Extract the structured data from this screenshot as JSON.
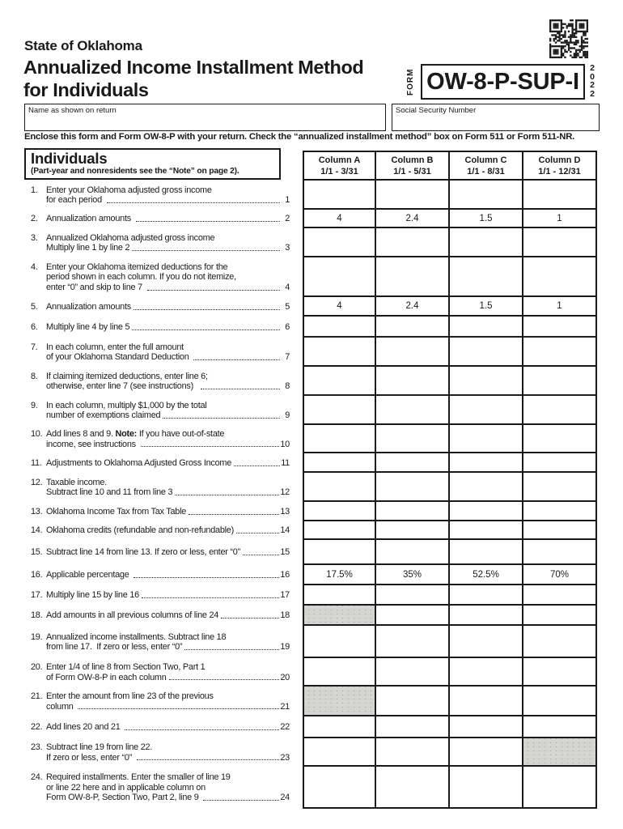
{
  "colors": {
    "ink": "#1a1a1a",
    "shaded_cell": "#d5d6d4"
  },
  "header": {
    "state": "State of Oklahoma",
    "title_line1": "Annualized Income Installment Method",
    "title_line2": "for Individuals",
    "form_label": "FORM",
    "form_number": "OW-8-P-SUP-I",
    "year": "2022",
    "name_label": "Name as shown on return",
    "ssn_label": "Social Security Number",
    "instruction": "Enclose this form and Form OW-8-P with your return. Check the “annualized installment method” box on Form 511 or Form 511-NR."
  },
  "section": {
    "title": "Individuals",
    "subtitle": "(Part-year and nonresidents see the “Note” on page 2)."
  },
  "columns": [
    {
      "label": "Column A",
      "period": "1/1 - 3/31"
    },
    {
      "label": "Column B",
      "period": "1/1 - 5/31"
    },
    {
      "label": "Column C",
      "period": "1/1 - 8/31"
    },
    {
      "label": "Column D",
      "period": "1/1 - 12/31"
    }
  ],
  "items": [
    {
      "num": "1.",
      "ref": "1",
      "lines": [
        "Enter your Oklahoma adjusted gross income",
        "for each period "
      ]
    },
    {
      "num": "2.",
      "ref": "2",
      "lines": [
        "Annualization amounts "
      ],
      "values": [
        "4",
        "2.4",
        "1.5",
        "1"
      ]
    },
    {
      "num": "3.",
      "ref": "3",
      "lines": [
        "Annualized Oklahoma adjusted gross income",
        "Multiply line 1 by line 2"
      ]
    },
    {
      "num": "4.",
      "ref": "4",
      "lines": [
        "Enter your Oklahoma itemized deductions for the",
        "period shown in each column. If you do not itemize,",
        "enter “0” and skip to line 7 "
      ]
    },
    {
      "num": "5.",
      "ref": "5",
      "lines": [
        "Annualization amounts"
      ],
      "values": [
        "4",
        "2.4",
        "1.5",
        "1"
      ]
    },
    {
      "num": "6.",
      "ref": "6",
      "lines": [
        "Multiply line 4 by line 5"
      ]
    },
    {
      "num": "7.",
      "ref": "7",
      "lines": [
        "In each column, enter the full amount",
        "of your Oklahoma Standard Deduction "
      ]
    },
    {
      "num": "8.",
      "ref": "8",
      "lines": [
        "If claiming itemized deductions, enter line 6;",
        "otherwise, enter line 7 (see instructions)  "
      ]
    },
    {
      "num": "9.",
      "ref": "9",
      "lines": [
        "In each column, multiply $1,000 by the total",
        "number of exemptions claimed"
      ]
    },
    {
      "num": "10.",
      "ref": "10",
      "lines": [
        "Add lines 8 and 9. **Note:** If you have out-of-state",
        "income, see instructions "
      ]
    },
    {
      "num": "11.",
      "ref": "11",
      "lines": [
        "Adjustments to Oklahoma Adjusted Gross Income"
      ]
    },
    {
      "num": "12.",
      "ref": "12",
      "lines": [
        "Taxable income.",
        "Subtract line 10 and 11 from line 3"
      ]
    },
    {
      "num": "13.",
      "ref": "13",
      "lines": [
        "Oklahoma Income Tax from Tax Table"
      ]
    },
    {
      "num": "14.",
      "ref": "14",
      "lines": [
        "Oklahoma credits (refundable and non-refundable)"
      ]
    },
    {
      "num": "15.",
      "ref": "15",
      "lines": [
        "Subtract line 14 from line 13. If zero or less, enter “0”"
      ]
    },
    {
      "num": "16.",
      "ref": "16",
      "lines": [
        "Applicable percentage "
      ],
      "values": [
        "17.5%",
        "35%",
        "52.5%",
        "70%"
      ]
    },
    {
      "num": "17.",
      "ref": "17",
      "lines": [
        "Multiply line 15 by line 16"
      ]
    },
    {
      "num": "18.",
      "ref": "18",
      "lines": [
        "Add amounts in all previous columns of line 24"
      ],
      "shaded": [
        0
      ]
    },
    {
      "num": "19.",
      "ref": "19",
      "lines": [
        "Annualized income installments. Subtract line 18",
        "from line 17.  If zero or less, enter “0”"
      ]
    },
    {
      "num": "20.",
      "ref": "20",
      "lines": [
        "Enter 1/4 of line 8 from Section Two, Part 1",
        "of Form OW-8-P in each column"
      ]
    },
    {
      "num": "21.",
      "ref": "21",
      "lines": [
        "Enter the amount from line 23 of the previous",
        "column "
      ],
      "shaded": [
        0
      ]
    },
    {
      "num": "22.",
      "ref": "22",
      "lines": [
        "Add lines 20 and 21 "
      ]
    },
    {
      "num": "23.",
      "ref": "23",
      "lines": [
        "Subtract line 19 from line 22.",
        "If zero or less, enter “0” "
      ],
      "shaded": [
        3
      ]
    },
    {
      "num": "24.",
      "ref": "24",
      "lines": [
        "Required installments. Enter the smaller of line 19",
        "or line 22 here and in applicable column on",
        "Form OW-8-P, Section Two, Part 2, line 9 "
      ]
    }
  ]
}
